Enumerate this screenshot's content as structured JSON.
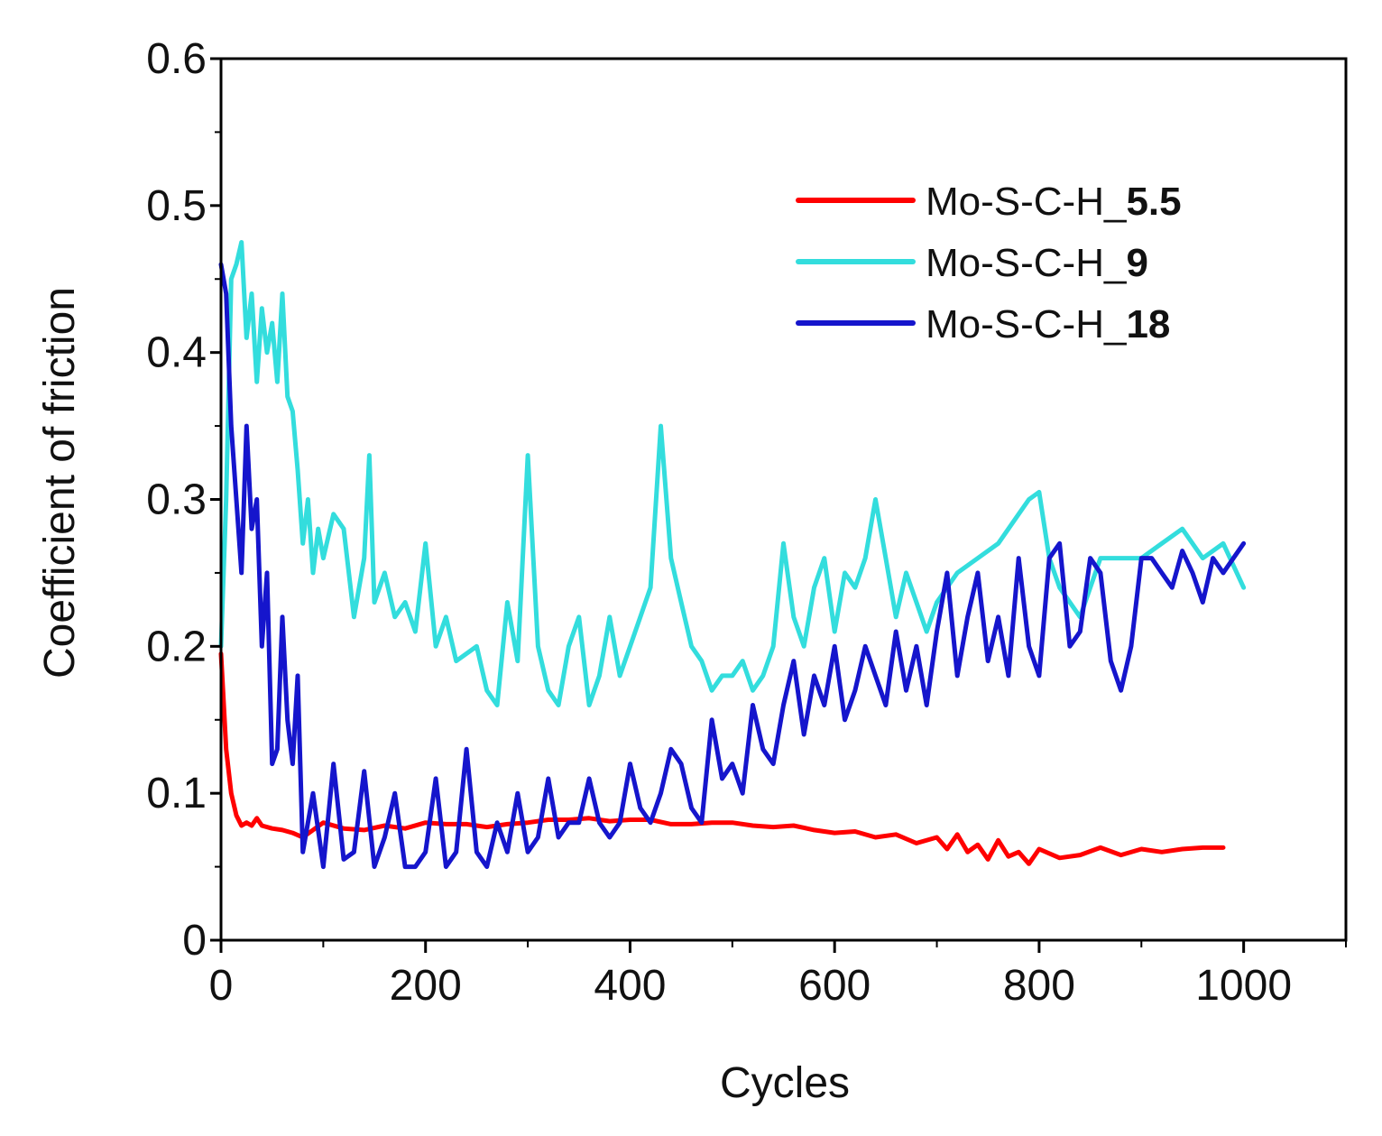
{
  "chart_data": {
    "type": "line",
    "xlabel": "Cycles",
    "ylabel": "Coefficient of friction",
    "xlim": [
      0,
      1100
    ],
    "ylim": [
      0,
      0.6
    ],
    "x_ticks": [
      0,
      200,
      400,
      600,
      800,
      1000
    ],
    "x_tick_labels": [
      "0",
      "200",
      "400",
      "600",
      "800",
      "1000"
    ],
    "y_ticks": [
      0,
      0.1,
      0.2,
      0.3,
      0.4,
      0.5,
      0.6
    ],
    "y_tick_labels": [
      "0",
      "0.1",
      "0.2",
      "0.3",
      "0.4",
      "0.5",
      "0.6"
    ],
    "legend_position": "top-right",
    "series": [
      {
        "name": "Mo-S-C-H_",
        "suffix": "5.5",
        "color": "#ff0000",
        "x": [
          0,
          5,
          10,
          15,
          20,
          25,
          30,
          35,
          40,
          50,
          60,
          70,
          80,
          90,
          100,
          120,
          140,
          160,
          180,
          200,
          220,
          240,
          260,
          280,
          300,
          320,
          340,
          360,
          380,
          400,
          420,
          440,
          460,
          480,
          500,
          520,
          540,
          560,
          580,
          600,
          620,
          640,
          660,
          680,
          700,
          710,
          720,
          730,
          740,
          750,
          760,
          770,
          780,
          790,
          800,
          820,
          840,
          860,
          880,
          900,
          920,
          940,
          960,
          980
        ],
        "y": [
          0.195,
          0.13,
          0.1,
          0.085,
          0.078,
          0.08,
          0.078,
          0.083,
          0.078,
          0.076,
          0.075,
          0.073,
          0.07,
          0.075,
          0.08,
          0.076,
          0.075,
          0.078,
          0.076,
          0.08,
          0.079,
          0.079,
          0.077,
          0.079,
          0.08,
          0.082,
          0.082,
          0.083,
          0.081,
          0.082,
          0.082,
          0.079,
          0.079,
          0.08,
          0.08,
          0.078,
          0.077,
          0.078,
          0.075,
          0.073,
          0.074,
          0.07,
          0.072,
          0.066,
          0.07,
          0.062,
          0.072,
          0.06,
          0.065,
          0.055,
          0.068,
          0.057,
          0.06,
          0.052,
          0.062,
          0.056,
          0.058,
          0.063,
          0.058,
          0.062,
          0.06,
          0.062,
          0.063,
          0.063
        ]
      },
      {
        "name": "Mo-S-C-H_",
        "suffix": "9",
        "color": "#33dddd",
        "x": [
          0,
          5,
          10,
          15,
          20,
          25,
          30,
          35,
          40,
          45,
          50,
          55,
          60,
          65,
          70,
          75,
          80,
          85,
          90,
          95,
          100,
          110,
          120,
          130,
          140,
          145,
          150,
          160,
          170,
          180,
          190,
          200,
          210,
          220,
          230,
          250,
          260,
          270,
          280,
          290,
          300,
          310,
          320,
          330,
          340,
          350,
          360,
          370,
          380,
          390,
          400,
          410,
          420,
          430,
          440,
          450,
          460,
          470,
          480,
          490,
          500,
          510,
          520,
          530,
          540,
          550,
          560,
          570,
          580,
          590,
          600,
          610,
          620,
          630,
          640,
          650,
          660,
          670,
          680,
          690,
          700,
          720,
          740,
          760,
          780,
          790,
          800,
          810,
          820,
          840,
          860,
          880,
          900,
          920,
          940,
          960,
          980,
          1000
        ],
        "y": [
          0.2,
          0.3,
          0.45,
          0.46,
          0.475,
          0.41,
          0.44,
          0.38,
          0.43,
          0.4,
          0.42,
          0.38,
          0.44,
          0.37,
          0.36,
          0.32,
          0.27,
          0.3,
          0.25,
          0.28,
          0.26,
          0.29,
          0.28,
          0.22,
          0.26,
          0.33,
          0.23,
          0.25,
          0.22,
          0.23,
          0.21,
          0.27,
          0.2,
          0.22,
          0.19,
          0.2,
          0.17,
          0.16,
          0.23,
          0.19,
          0.33,
          0.2,
          0.17,
          0.16,
          0.2,
          0.22,
          0.16,
          0.18,
          0.22,
          0.18,
          0.2,
          0.22,
          0.24,
          0.35,
          0.26,
          0.23,
          0.2,
          0.19,
          0.17,
          0.18,
          0.18,
          0.19,
          0.17,
          0.18,
          0.2,
          0.27,
          0.22,
          0.2,
          0.24,
          0.26,
          0.21,
          0.25,
          0.24,
          0.26,
          0.3,
          0.26,
          0.22,
          0.25,
          0.23,
          0.21,
          0.23,
          0.25,
          0.26,
          0.27,
          0.29,
          0.3,
          0.305,
          0.26,
          0.24,
          0.22,
          0.26,
          0.26,
          0.26,
          0.27,
          0.28,
          0.26,
          0.27,
          0.24
        ]
      },
      {
        "name": "Mo-S-C-H_",
        "suffix": "18",
        "color": "#1515cc",
        "x": [
          0,
          5,
          10,
          15,
          20,
          25,
          30,
          35,
          40,
          45,
          50,
          55,
          60,
          65,
          70,
          75,
          80,
          90,
          100,
          110,
          120,
          130,
          140,
          150,
          160,
          170,
          180,
          190,
          200,
          210,
          220,
          230,
          240,
          250,
          260,
          270,
          280,
          290,
          300,
          310,
          320,
          330,
          340,
          350,
          360,
          370,
          380,
          390,
          400,
          410,
          420,
          430,
          440,
          450,
          460,
          470,
          480,
          490,
          500,
          510,
          520,
          530,
          540,
          550,
          560,
          570,
          580,
          590,
          600,
          610,
          620,
          630,
          640,
          650,
          660,
          670,
          680,
          690,
          700,
          710,
          720,
          730,
          740,
          750,
          760,
          770,
          780,
          790,
          800,
          810,
          820,
          830,
          840,
          850,
          860,
          870,
          880,
          890,
          900,
          910,
          920,
          930,
          940,
          950,
          960,
          970,
          980,
          990,
          1000
        ],
        "y": [
          0.46,
          0.44,
          0.35,
          0.3,
          0.25,
          0.35,
          0.28,
          0.3,
          0.2,
          0.25,
          0.12,
          0.13,
          0.22,
          0.15,
          0.12,
          0.18,
          0.06,
          0.1,
          0.05,
          0.12,
          0.055,
          0.06,
          0.115,
          0.05,
          0.07,
          0.1,
          0.05,
          0.05,
          0.06,
          0.11,
          0.05,
          0.06,
          0.13,
          0.06,
          0.05,
          0.08,
          0.06,
          0.1,
          0.06,
          0.07,
          0.11,
          0.07,
          0.08,
          0.08,
          0.11,
          0.08,
          0.07,
          0.08,
          0.12,
          0.09,
          0.08,
          0.1,
          0.13,
          0.12,
          0.09,
          0.08,
          0.15,
          0.11,
          0.12,
          0.1,
          0.16,
          0.13,
          0.12,
          0.16,
          0.19,
          0.14,
          0.18,
          0.16,
          0.2,
          0.15,
          0.17,
          0.2,
          0.18,
          0.16,
          0.21,
          0.17,
          0.2,
          0.16,
          0.21,
          0.25,
          0.18,
          0.22,
          0.25,
          0.19,
          0.22,
          0.18,
          0.26,
          0.2,
          0.18,
          0.26,
          0.27,
          0.2,
          0.21,
          0.26,
          0.25,
          0.19,
          0.17,
          0.2,
          0.26,
          0.26,
          0.25,
          0.24,
          0.265,
          0.25,
          0.23,
          0.26,
          0.25,
          0.26,
          0.27
        ]
      }
    ]
  }
}
